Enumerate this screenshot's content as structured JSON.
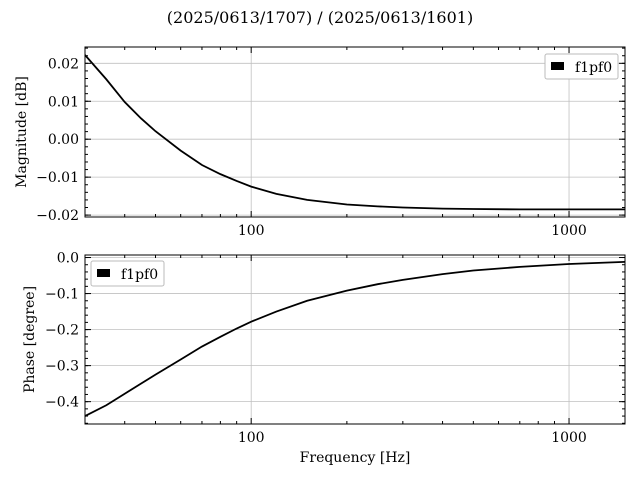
{
  "chart_data": {
    "title": "(2025/0613/1707) / (2025/0613/1601)",
    "xlabel": "Frequency [Hz]",
    "xscale": "log",
    "xlim": [
      30,
      1500
    ],
    "x_ticks": [
      100,
      1000
    ],
    "x_tick_labels": [
      "100",
      "1000"
    ],
    "panels": [
      {
        "type": "line",
        "ylabel": "Magnitude [dB]",
        "ylim": [
          -0.0205,
          0.0243
        ],
        "y_ticks": [
          0.02,
          0.01,
          0.0,
          -0.01,
          -0.02
        ],
        "y_tick_labels": [
          "0.02",
          "0.01",
          "0.00",
          "−0.01",
          "−0.02"
        ],
        "grid": true,
        "legend": {
          "position": "top-right",
          "entries": [
            "f1pf0"
          ]
        },
        "series": [
          {
            "name": "f1pf0",
            "color": "#000000",
            "x": [
              30,
              35,
              40,
              45,
              50,
              60,
              70,
              80,
              90,
              100,
              120,
              150,
              200,
              250,
              300,
              400,
              500,
              700,
              1000,
              1500
            ],
            "y": [
              0.0222,
              0.0158,
              0.0098,
              0.0055,
              0.0021,
              -0.003,
              -0.0068,
              -0.0092,
              -0.011,
              -0.0125,
              -0.0144,
              -0.016,
              -0.0172,
              -0.0177,
              -0.018,
              -0.0183,
              -0.0184,
              -0.0185,
              -0.0185,
              -0.0185
            ]
          }
        ]
      },
      {
        "type": "line",
        "ylabel": "Phase [degree]",
        "ylim": [
          -0.462,
          0.007
        ],
        "y_ticks": [
          0.0,
          -0.1,
          -0.2,
          -0.3,
          -0.4
        ],
        "y_tick_labels": [
          "0.0",
          "−0.1",
          "−0.2",
          "−0.3",
          "−0.4"
        ],
        "grid": true,
        "legend": {
          "position": "top-left",
          "entries": [
            "f1pf0"
          ]
        },
        "series": [
          {
            "name": "f1pf0",
            "color": "#000000",
            "x": [
              30,
              35,
              40,
              45,
              50,
              60,
              70,
              80,
              90,
              100,
              120,
              150,
              200,
              250,
              300,
              400,
              500,
              700,
              1000,
              1500
            ],
            "y": [
              -0.44,
              -0.41,
              -0.378,
              -0.35,
              -0.325,
              -0.283,
              -0.247,
              -0.22,
              -0.197,
              -0.178,
              -0.15,
              -0.12,
              -0.092,
              -0.074,
              -0.062,
              -0.046,
              -0.036,
              -0.026,
              -0.018,
              -0.012
            ]
          }
        ]
      }
    ]
  }
}
